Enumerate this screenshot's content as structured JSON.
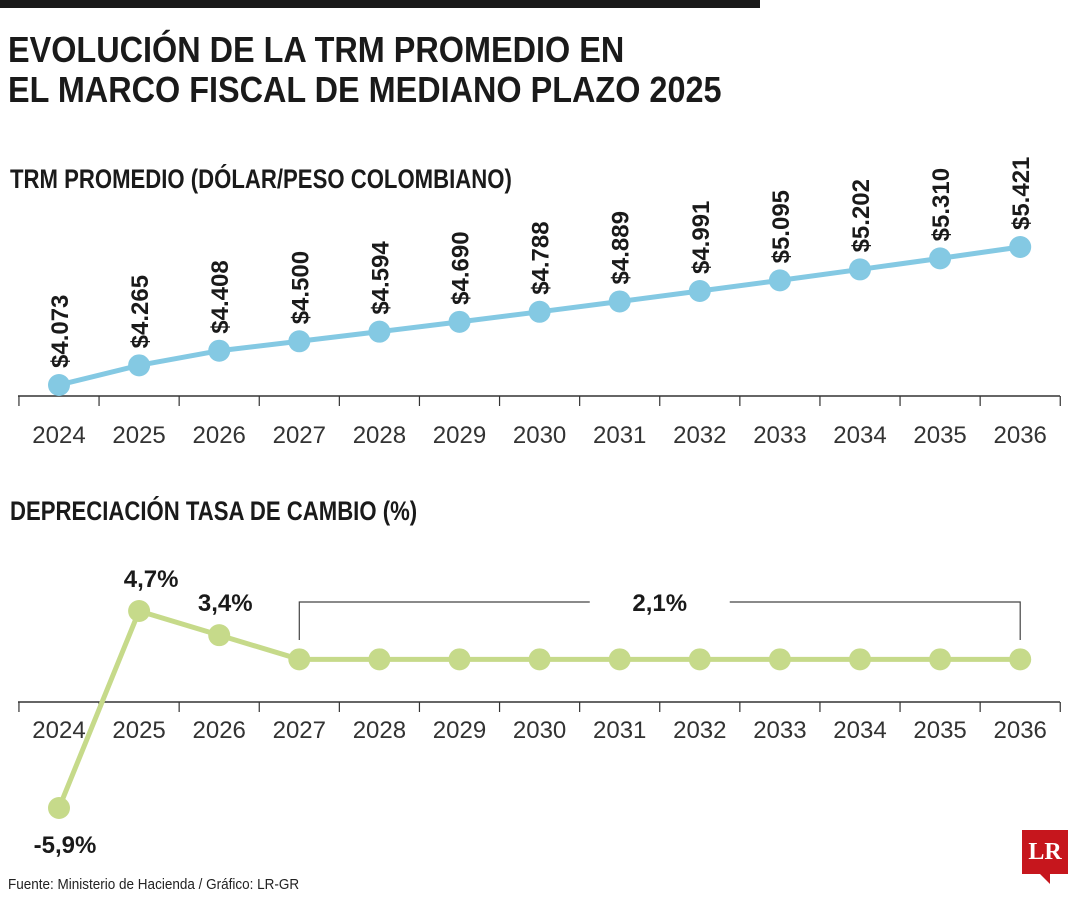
{
  "header": {
    "title_line1": "EVOLUCIÓN DE LA TRM PROMEDIO EN",
    "title_line2": "EL MARCO FISCAL DE MEDIANO PLAZO 2025"
  },
  "footer": {
    "source": "Fuente: Ministerio de Hacienda / Gráfico: LR-GR",
    "logo": "LR"
  },
  "colors": {
    "trm": "#84c9e3",
    "dep": "#c6da8a",
    "logo": "#c6161d"
  },
  "chart_data": [
    {
      "type": "line",
      "title": "TRM PROMEDIO (DÓLAR/PESO COLOMBIANO)",
      "categories": [
        "2024",
        "2025",
        "2026",
        "2027",
        "2028",
        "2029",
        "2030",
        "2031",
        "2032",
        "2033",
        "2034",
        "2035",
        "2036"
      ],
      "values": [
        4073,
        4265,
        4408,
        4500,
        4594,
        4690,
        4788,
        4889,
        4991,
        5095,
        5202,
        5310,
        5421
      ],
      "labels": [
        "$4.073",
        "$4.265",
        "$4.408",
        "$4.500",
        "$4.594",
        "$4.690",
        "$4.788",
        "$4.889",
        "$4.991",
        "$5.095",
        "$5.202",
        "$5.310",
        "$5.421"
      ],
      "grid": false
    },
    {
      "type": "line",
      "title": "DEPRECIACIÓN TASA DE CAMBIO (%)",
      "categories": [
        "2024",
        "2025",
        "2026",
        "2027",
        "2028",
        "2029",
        "2030",
        "2031",
        "2032",
        "2033",
        "2034",
        "2035",
        "2036"
      ],
      "values": [
        -5.9,
        4.7,
        3.4,
        2.1,
        2.1,
        2.1,
        2.1,
        2.1,
        2.1,
        2.1,
        2.1,
        2.1,
        2.1
      ],
      "labels": [
        "-5,9%",
        "4,7%",
        "3,4%"
      ],
      "bracket_label": "2,1%",
      "grid": false
    }
  ]
}
